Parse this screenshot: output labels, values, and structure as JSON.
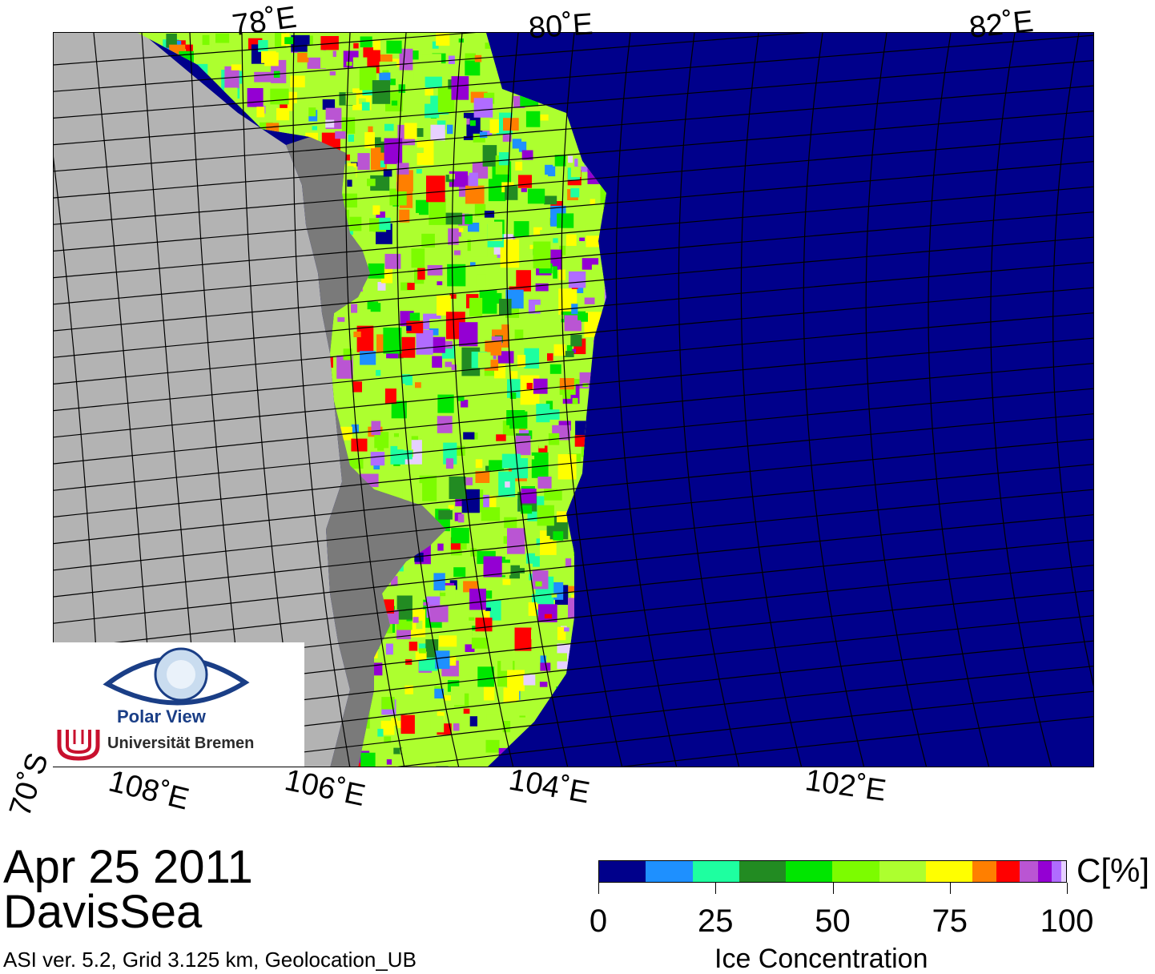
{
  "map": {
    "lon_labels_top": [
      "78˚E",
      "80˚E",
      "82˚E"
    ],
    "lon_labels_bottom": [
      "108˚E",
      "106˚E",
      "104˚E",
      "102˚E"
    ],
    "lat_label": "70˚S",
    "colors": {
      "land": "#b3b3b3",
      "ice_shelf": "#7a7a7a",
      "open_water": "#00008b",
      "grid": "#000000"
    }
  },
  "logo": {
    "name": "Polar View",
    "institution": "Universität Bremen"
  },
  "header": {
    "date": "Apr 25 2011",
    "region": "DavisSea",
    "info": "ASI ver. 5.2,  Grid 3.125 km, Geolocation_UB"
  },
  "colorbar": {
    "title": "Ice Concentration",
    "unit": "C[%]",
    "ticks": [
      "0",
      "25",
      "50",
      "75",
      "100"
    ],
    "bins": [
      {
        "from": 0,
        "to": 10,
        "color": "#00008b"
      },
      {
        "from": 10,
        "to": 20,
        "color": "#1e90ff"
      },
      {
        "from": 20,
        "to": 30,
        "color": "#1effa0"
      },
      {
        "from": 30,
        "to": 40,
        "color": "#228b22"
      },
      {
        "from": 40,
        "to": 50,
        "color": "#00e600"
      },
      {
        "from": 50,
        "to": 60,
        "color": "#7cfc00"
      },
      {
        "from": 60,
        "to": 70,
        "color": "#adff2f"
      },
      {
        "from": 70,
        "to": 80,
        "color": "#ffff00"
      },
      {
        "from": 80,
        "to": 85,
        "color": "#ff7f00"
      },
      {
        "from": 85,
        "to": 90,
        "color": "#ff0000"
      },
      {
        "from": 90,
        "to": 94,
        "color": "#ba55d3"
      },
      {
        "from": 94,
        "to": 97,
        "color": "#9400d3"
      },
      {
        "from": 97,
        "to": 99,
        "color": "#b06cff"
      },
      {
        "from": 99,
        "to": 100,
        "color": "#e6d0ff"
      }
    ]
  }
}
